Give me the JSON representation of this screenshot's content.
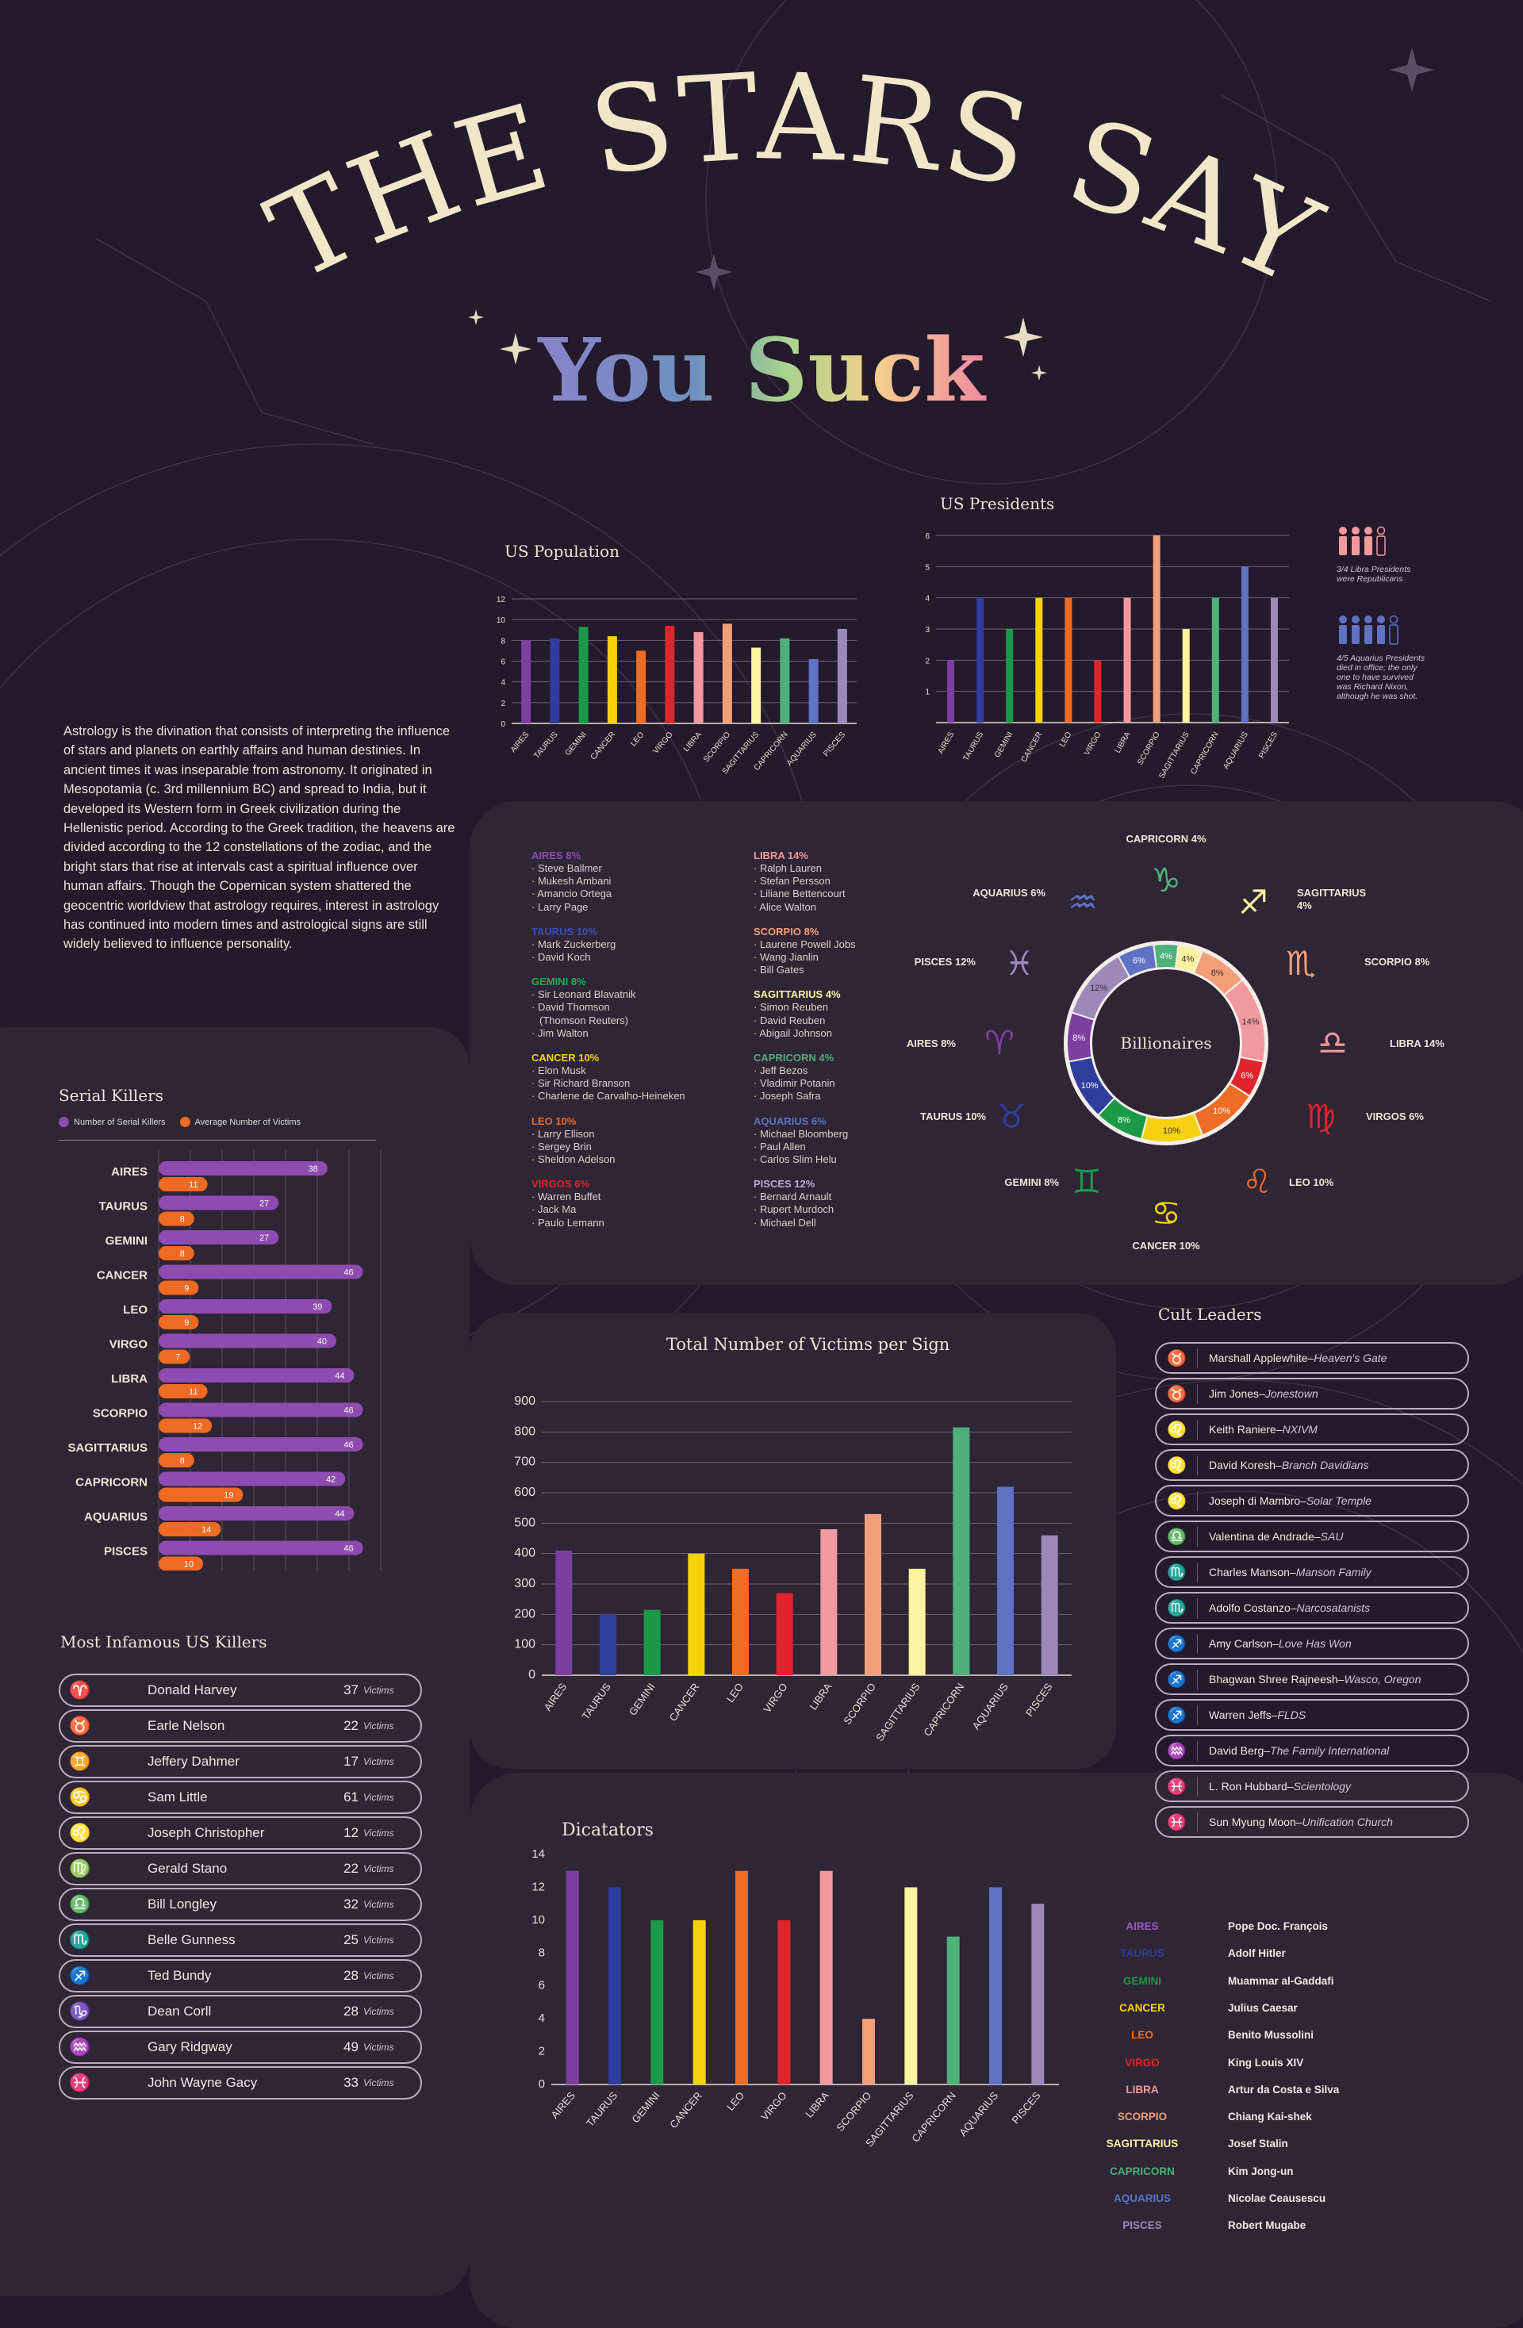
{
  "title": {
    "line1": "THE STARS SAY",
    "line2": "You Suck"
  },
  "colors": {
    "bg": "#231a2b",
    "panel": "#2e2535",
    "title": "#f2e6c9",
    "purple": "#8e4bb0",
    "orange": "#ef6a22"
  },
  "intro": "Astrology is the divination that consists of interpreting the influence of stars and planets on earthly affairs and human destinies. In ancient times it was inseparable from astronomy. It originated in Mesopotamia (c. 3rd millennium BC) and spread to India, but it developed its Western form in Greek civilization during the Hellenistic period. According to the Greek tradition, the heavens are divided according to the 12 constellations of the zodiac, and the bright stars that rise at intervals cast a spiritual influence over human affairs. Though the Copernican system shattered the geocentric worldview that astrology requires, interest in astrology has continued into modern times and astrological signs are still widely believed to influence personality.",
  "signs": [
    "AIRES",
    "TAURUS",
    "GEMINI",
    "CANCER",
    "LEO",
    "VIRGO",
    "LIBRA",
    "SCORPIO",
    "SAGITTARIUS",
    "CAPRICORN",
    "AQUARIUS",
    "PISCES"
  ],
  "sign_colors": [
    "#7c3f9f",
    "#2e3d9e",
    "#1a9a48",
    "#f5d20e",
    "#ee6c24",
    "#e0242c",
    "#f2999d",
    "#f29f79",
    "#fdf29d",
    "#4fb07a",
    "#5f72c4",
    "#9d88b9"
  ],
  "sign_glyphs": [
    "♈",
    "♉",
    "♊",
    "♋",
    "♌",
    "♍",
    "♎",
    "♏",
    "♐",
    "♑",
    "♒",
    "♓"
  ],
  "chart_data": [
    {
      "id": "population",
      "type": "bar",
      "title": "US Population",
      "categories": [
        "AIRES",
        "TAURUS",
        "GEMINI",
        "CANCER",
        "LEO",
        "VIRGO",
        "LIBRA",
        "SCORPIO",
        "SAGITTARIUS",
        "CAPRICORN",
        "AQUARIUS",
        "PISCES"
      ],
      "values": [
        8,
        8.2,
        9.3,
        8.4,
        7,
        9.4,
        8.8,
        9.6,
        7.3,
        8.2,
        6.2,
        9.1
      ],
      "ylim": [
        0,
        12
      ],
      "yticks": [
        "0",
        "2",
        "4",
        "6",
        "8",
        "10",
        "12"
      ]
    },
    {
      "id": "presidents",
      "type": "bar",
      "title": "US Presidents",
      "categories": [
        "AIRES",
        "TAURUS",
        "GEMINI",
        "CANCER",
        "LEO",
        "VIRGO",
        "LIBRA",
        "SCORPIO",
        "SAGITTARIUS",
        "CAPRICORN",
        "AQUARIUS",
        "PISCES"
      ],
      "values": [
        2,
        4,
        3,
        4,
        4,
        2,
        4,
        6,
        3,
        4,
        5,
        4
      ],
      "ylim": [
        0,
        6
      ],
      "yticks": [
        "1",
        "2",
        "3",
        "4",
        "5",
        "6"
      ]
    },
    {
      "id": "billionaires",
      "type": "pie",
      "title": "Billionaires",
      "categories": [
        "CAPRICORN",
        "SAGITTARIUS",
        "SCORPIO",
        "LIBRA",
        "VIRGOS",
        "LEO",
        "CANCER",
        "GEMINI",
        "TAURUS",
        "AIRES",
        "PISCES",
        "AQUARIUS"
      ],
      "values": [
        4,
        4,
        8,
        14,
        6,
        10,
        10,
        8,
        10,
        8,
        12,
        6
      ],
      "labels": [
        "4%",
        "4%",
        "8%",
        "14%",
        "6%",
        "10%",
        "10%",
        "8%",
        "10%",
        "8%",
        "12%",
        "6%"
      ]
    },
    {
      "id": "serial_killers",
      "type": "bar",
      "title": "Serial Killers",
      "categories": [
        "AIRES",
        "TAURUS",
        "GEMINI",
        "CANCER",
        "LEO",
        "VIRGO",
        "LIBRA",
        "SCORPIO",
        "SAGITTARIUS",
        "CAPRICORN",
        "AQUARIUS",
        "PISCES"
      ],
      "series": [
        {
          "name": "Number of Serial Killers",
          "values": [
            38,
            27,
            27,
            46,
            39,
            40,
            44,
            46,
            46,
            42,
            44,
            46
          ]
        },
        {
          "name": "Average Number of Victims",
          "values": [
            11,
            8,
            8,
            9,
            9,
            7,
            11,
            12,
            8,
            19,
            14,
            10
          ]
        }
      ]
    },
    {
      "id": "victims",
      "type": "bar",
      "title": "Total Number of Victims per Sign",
      "categories": [
        "AIRES",
        "TAURUS",
        "GEMINI",
        "CANCER",
        "LEO",
        "VIRGO",
        "LIBRA",
        "SCORPIO",
        "SAGITTARIUS",
        "CAPRICORN",
        "AQUARIUS",
        "PISCES"
      ],
      "values": [
        410,
        200,
        215,
        400,
        350,
        270,
        480,
        530,
        350,
        815,
        620,
        460
      ],
      "ylim": [
        0,
        900
      ],
      "yticks": [
        "0",
        "100",
        "200",
        "300",
        "400",
        "500",
        "600",
        "700",
        "800",
        "900"
      ]
    },
    {
      "id": "dictators",
      "type": "bar",
      "title": "Dicatators",
      "categories": [
        "AIRES",
        "TAURUS",
        "GEMINI",
        "CANCER",
        "LEO",
        "VIRGO",
        "LIBRA",
        "SCORPIO",
        "SAGITTARIUS",
        "CAPRICORN",
        "AQUARIUS",
        "PISCES"
      ],
      "values": [
        13,
        12,
        10,
        10,
        13,
        10,
        13,
        4,
        12,
        9,
        12,
        11
      ],
      "ylim": [
        0,
        14
      ],
      "yticks": [
        "0",
        "2",
        "4",
        "6",
        "8",
        "10",
        "12",
        "14"
      ]
    }
  ],
  "president_notes": [
    {
      "count": "3/4",
      "text": "3/4 Libra Presidents were Republicans"
    },
    {
      "count": "4/5",
      "text": "4/5 Aquarius Presidents died in office; the only one to have survived was Richard Nixon, although he was shot."
    }
  ],
  "billionaire_labels": [
    {
      "name": "CAPRICORN 4%"
    },
    {
      "name": "SAGITTARIUS 4%"
    },
    {
      "name": "SCORPIO 8%"
    },
    {
      "name": "LIBRA 14%"
    },
    {
      "name": "VIRGOS 6%"
    },
    {
      "name": "LEO 10%"
    },
    {
      "name": "CANCER 10%"
    },
    {
      "name": "GEMINI 8%"
    },
    {
      "name": "TAURUS 10%"
    },
    {
      "name": "AIRES 8%"
    },
    {
      "name": "PISCES 12%"
    },
    {
      "name": "AQUARIUS 6%"
    }
  ],
  "billionaire_lists": {
    "left": [
      {
        "head": "AIRES 8%",
        "color": "#8e4bb0",
        "names": [
          "· Steve Ballmer",
          "· Mukesh Ambani",
          "· Amancio Ortega",
          "· Larry Page"
        ]
      },
      {
        "head": "TAURUS 10%",
        "color": "#3a4fb8",
        "names": [
          "· Mark Zuckerberg",
          "· David Koch"
        ]
      },
      {
        "head": "GEMINI 8%",
        "color": "#1fae55",
        "names": [
          "· Sir Leonard Blavatnik",
          "· David Thomson",
          "(Thomson Reuters)",
          "· Jim Walton"
        ]
      },
      {
        "head": "CANCER 10%",
        "color": "#f5d20e",
        "names": [
          "· Elon Musk",
          "· Sir Richard Branson",
          "· Charlene de Carvalho-Heineken"
        ]
      },
      {
        "head": "LEO 10%",
        "color": "#ee6c24",
        "names": [
          "· Larry Ellison",
          "· Sergey Brin",
          "· Sheldon Adelson"
        ]
      },
      {
        "head": "VIRGOS 6%",
        "color": "#e0242c",
        "names": [
          "· Warren Buffet",
          "· Jack Ma",
          "· Paulo Lemann"
        ]
      }
    ],
    "right": [
      {
        "head": "LIBRA 14%",
        "color": "#f2999d",
        "names": [
          "· Ralph Lauren",
          "· Stefan Persson",
          "· Liliane Bettencourt",
          "· Alice Walton"
        ]
      },
      {
        "head": "SCORPIO 8%",
        "color": "#f29f79",
        "names": [
          "· Laurene Powell Jobs",
          "· Wang Jianlin",
          "· Bill Gates"
        ]
      },
      {
        "head": "SAGITTARIUS 4%",
        "color": "#fdf29d",
        "names": [
          "· Simon Reuben",
          "· David Reuben",
          "· Abigail Johnson"
        ]
      },
      {
        "head": "CAPRICORN 4%",
        "color": "#4fb07a",
        "names": [
          "· Jeff Bezos",
          "· Vladimir Potanin",
          "· Joseph Safra"
        ]
      },
      {
        "head": "AQUARIUS 6%",
        "color": "#5f72c4",
        "names": [
          "· Michael Bloomberg",
          "· Paul Allen",
          "· Carlos Slim Helu"
        ]
      },
      {
        "head": "PISCES 12%",
        "color": "#b9aed0",
        "names": [
          "· Bernard Arnault",
          "· Rupert Murdoch",
          "· Michael Dell"
        ]
      }
    ]
  },
  "infamous": {
    "title": "Most Infamous US Killers",
    "unit": "Victims",
    "rows": [
      {
        "name": "Donald Harvey",
        "count": "37"
      },
      {
        "name": "Earle Nelson",
        "count": "22"
      },
      {
        "name": "Jeffery Dahmer",
        "count": "17"
      },
      {
        "name": "Sam Little",
        "count": "61"
      },
      {
        "name": "Joseph Christopher",
        "count": "12"
      },
      {
        "name": "Gerald Stano",
        "count": "22"
      },
      {
        "name": "Bill Longley",
        "count": "32"
      },
      {
        "name": "Belle Gunness",
        "count": "25"
      },
      {
        "name": "Ted Bundy",
        "count": "28"
      },
      {
        "name": "Dean Corll",
        "count": "28"
      },
      {
        "name": "Gary Ridgway",
        "count": "49"
      },
      {
        "name": "John Wayne Gacy",
        "count": "33"
      }
    ]
  },
  "cult": {
    "title": "Cult Leaders",
    "rows": [
      {
        "glyph": "♉",
        "color": "#4d5fc0",
        "name": "Marshall Applewhite–",
        "group": "Heaven's Gate"
      },
      {
        "glyph": "♉",
        "color": "#4d5fc0",
        "name": "Jim Jones–",
        "group": "Jonestown"
      },
      {
        "glyph": "♌",
        "color": "#ee6c24",
        "name": "Keith Raniere–",
        "group": "NXIVM"
      },
      {
        "glyph": "♌",
        "color": "#ee6c24",
        "name": "David Koresh–",
        "group": "Branch Davidians"
      },
      {
        "glyph": "♌",
        "color": "#ee6c24",
        "name": "Joseph di Mambro–",
        "group": "Solar Temple"
      },
      {
        "glyph": "♎",
        "color": "#f2999d",
        "name": "Valentina de Andrade–",
        "group": "SAU"
      },
      {
        "glyph": "♏",
        "color": "#f29f79",
        "name": "Charles Manson–",
        "group": "Manson Family"
      },
      {
        "glyph": "♏",
        "color": "#f29f79",
        "name": "Adolfo Costanzo–",
        "group": "Narcosatanists"
      },
      {
        "glyph": "♐",
        "color": "#fdf29d",
        "name": "Amy Carlson–",
        "group": "Love Has Won"
      },
      {
        "glyph": "♐",
        "color": "#fdf29d",
        "name": "Bhagwan Shree Rajneesh–",
        "group": "Wasco, Oregon"
      },
      {
        "glyph": "♐",
        "color": "#fdf29d",
        "name": "Warren Jeffs–",
        "group": "FLDS"
      },
      {
        "glyph": "♒",
        "color": "#5f72c4",
        "name": "David Berg–",
        "group": "The Family International"
      },
      {
        "glyph": "♓",
        "color": "#9d88b9",
        "name": "L. Ron Hubbard–",
        "group": "Scientology"
      },
      {
        "glyph": "♓",
        "color": "#9d88b9",
        "name": "Sun Myung Moon–",
        "group": "Unification Church"
      }
    ]
  },
  "dictators_list": [
    {
      "sign": "AIRES",
      "name": "Pope Doc. François"
    },
    {
      "sign": "TAURUS",
      "name": "Adolf Hitler"
    },
    {
      "sign": "GEMINI",
      "name": "Muammar al-Gaddafi"
    },
    {
      "sign": "CANCER",
      "name": "Julius Caesar"
    },
    {
      "sign": "LEO",
      "name": "Benito Mussolini"
    },
    {
      "sign": "VIRGO",
      "name": "King Louis XIV"
    },
    {
      "sign": "LIBRA",
      "name": "Artur da Costa e Silva"
    },
    {
      "sign": "SCORPIO",
      "name": "Chiang Kai-shek"
    },
    {
      "sign": "SAGITTARIUS",
      "name": "Josef Stalin"
    },
    {
      "sign": "CAPRICORN",
      "name": "Kim Jong-un"
    },
    {
      "sign": "AQUARIUS",
      "name": "Nicolae Ceausescu"
    },
    {
      "sign": "PISCES",
      "name": "Robert Mugabe"
    }
  ]
}
